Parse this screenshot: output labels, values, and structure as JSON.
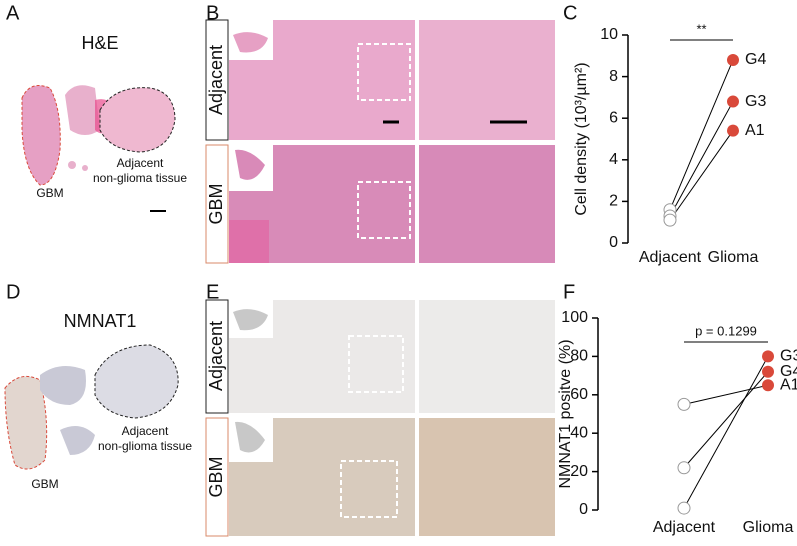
{
  "panels": {
    "letters": [
      "A",
      "B",
      "C",
      "D",
      "E",
      "F"
    ],
    "he": {
      "title": "H&E",
      "gbm": "GBM",
      "adjacent": "Adjacent",
      "tissue": "non-glioma tissue"
    },
    "he_rows": [
      "Adjacent",
      "GBM"
    ],
    "nmnat": {
      "title": "NMNAT1",
      "gbm": "GBM",
      "adjacent": "Adjacent",
      "tissue": "non-glioma tissue"
    },
    "nmnat_rows": [
      "Adjacent",
      "GBM"
    ]
  },
  "chart_data": [
    {
      "type": "paired",
      "ylabel": "Cell density (10³/µm²)",
      "annotation": "**",
      "categories": [
        "Adjacent",
        "Glioma"
      ],
      "ylim": [
        0,
        10
      ],
      "yticks": [
        0,
        2,
        4,
        6,
        8,
        10
      ],
      "color": "#d9493a",
      "series": [
        {
          "name": "G4",
          "values": [
            1.6,
            8.8
          ]
        },
        {
          "name": "G3",
          "values": [
            1.3,
            6.8
          ]
        },
        {
          "name": "A1",
          "values": [
            1.1,
            5.4
          ]
        }
      ]
    },
    {
      "type": "paired",
      "ylabel": "NMNAT1 positve (%)",
      "annotation": "p = 0.1299",
      "categories": [
        "Adjacent",
        "Glioma"
      ],
      "ylim": [
        0,
        100
      ],
      "yticks": [
        0,
        20,
        40,
        60,
        80,
        100
      ],
      "color": "#d9493a",
      "series": [
        {
          "name": "G3",
          "values": [
            1,
            80
          ]
        },
        {
          "name": "G4",
          "values": [
            22,
            72
          ]
        },
        {
          "name": "A1",
          "values": [
            55,
            65
          ]
        }
      ]
    }
  ]
}
